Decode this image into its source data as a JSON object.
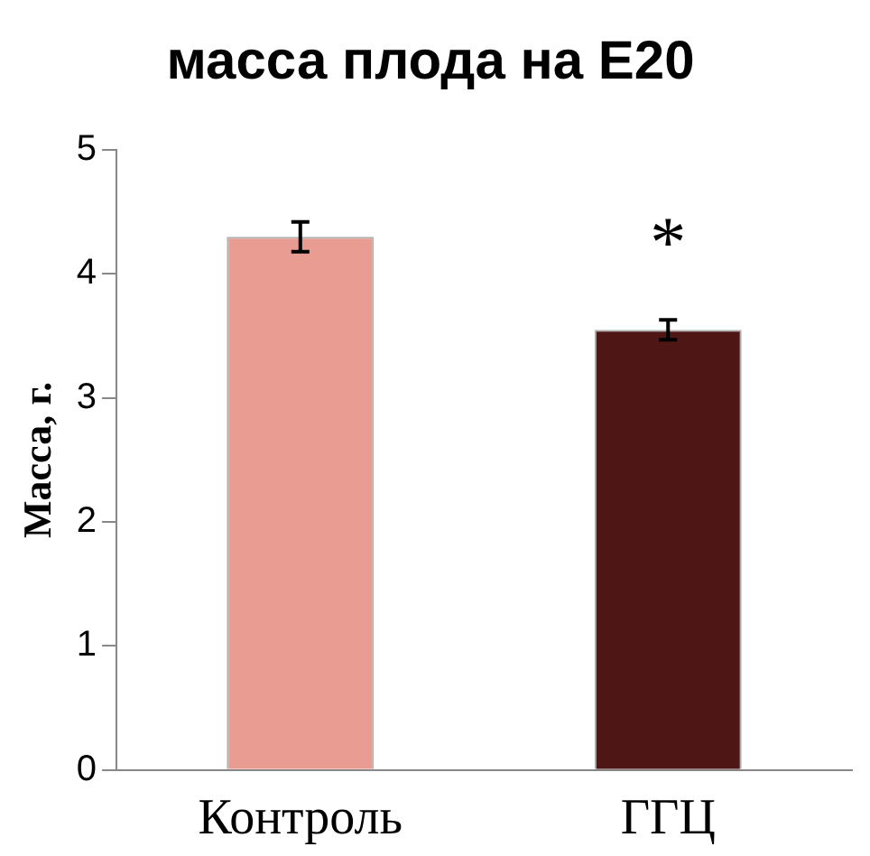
{
  "chart_data": {
    "type": "bar",
    "title": "масса плода на Е20",
    "ylabel": "Масса, г.",
    "categories": [
      "Контроль",
      "ГГЦ"
    ],
    "values": [
      4.3,
      3.55
    ],
    "colors": [
      "#e89c92",
      "#4e1614"
    ],
    "errors": [
      0.12,
      0.08
    ],
    "ylim": [
      0,
      5
    ],
    "yticks": [
      0,
      1,
      2,
      3,
      4,
      5
    ],
    "grid": false,
    "legend": false,
    "annotations": [
      "*"
    ]
  }
}
